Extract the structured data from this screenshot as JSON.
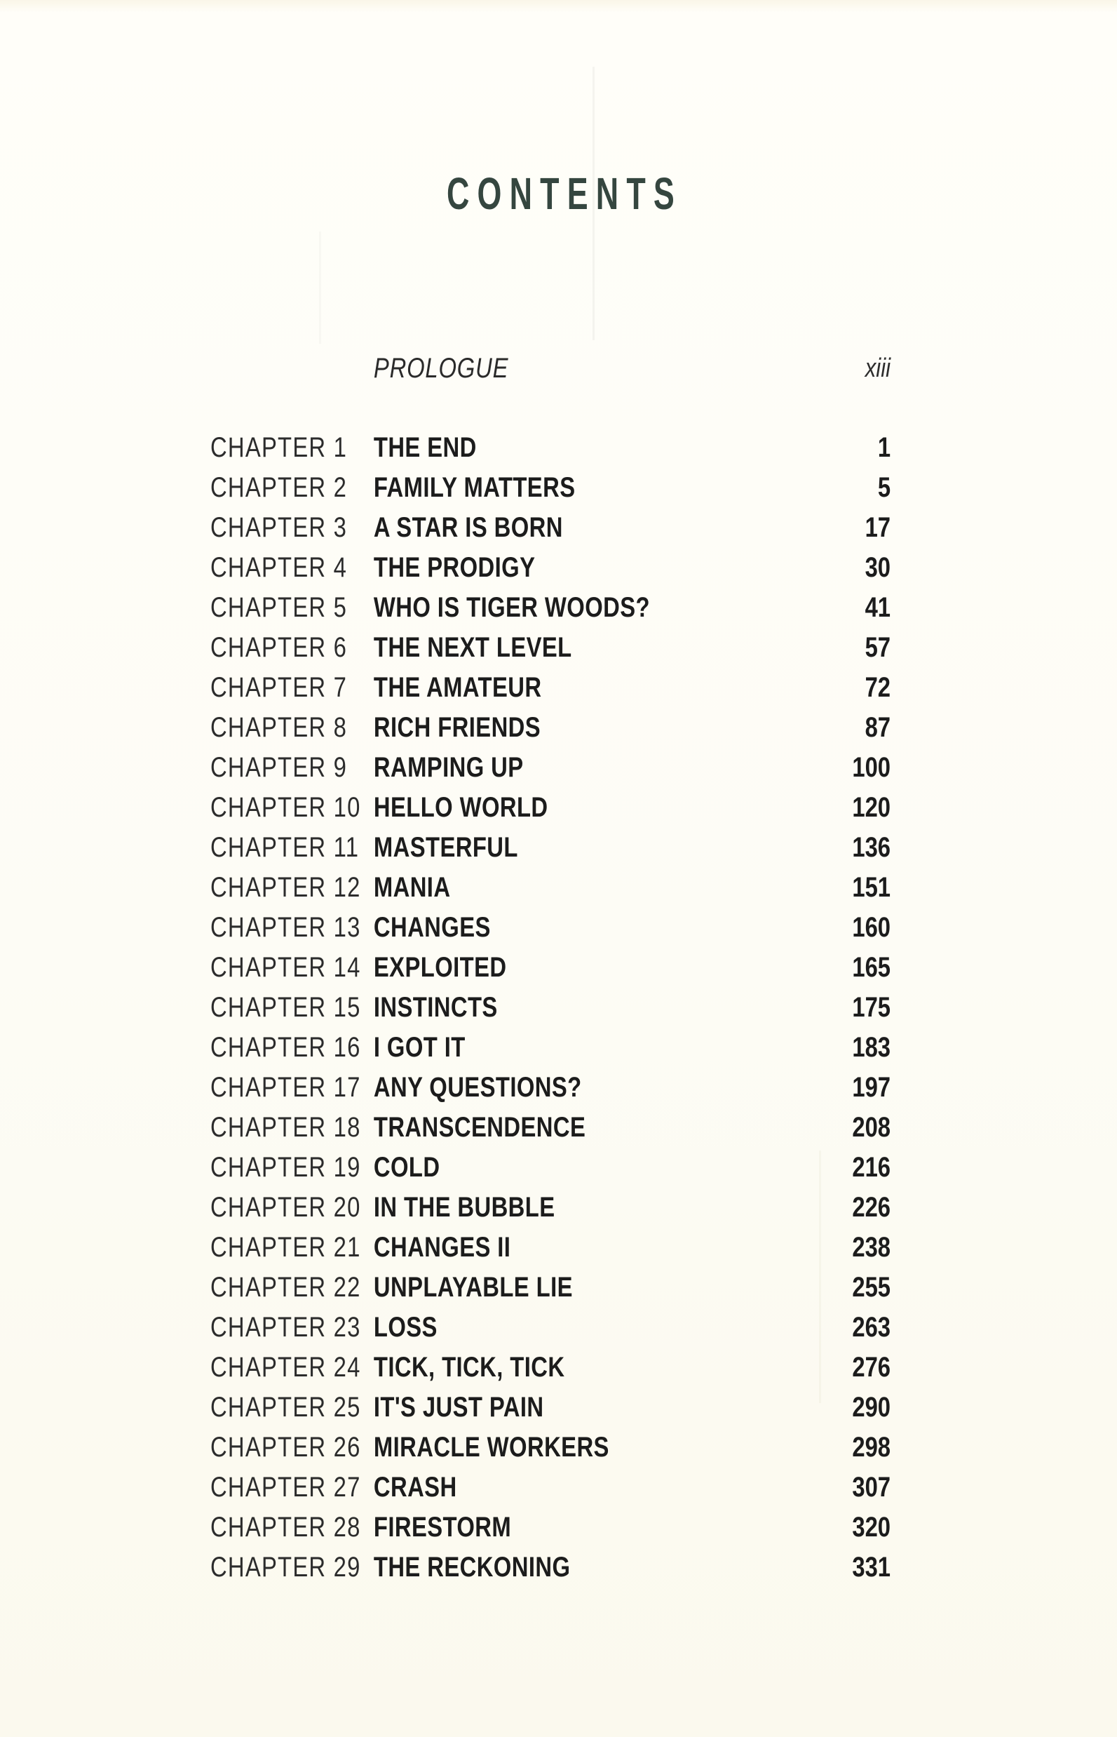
{
  "page": {
    "heading": "CONTENTS",
    "colors": {
      "heading": "#35463f",
      "body_text": "#1e1e1e",
      "paper": "#fdfcf5"
    }
  },
  "front_matter": {
    "label": "PROLOGUE",
    "page": "xiii"
  },
  "chapters": [
    {
      "label": "CHAPTER 1",
      "title": "THE END",
      "page": "1"
    },
    {
      "label": "CHAPTER 2",
      "title": "FAMILY MATTERS",
      "page": "5"
    },
    {
      "label": "CHAPTER 3",
      "title": "A STAR IS BORN",
      "page": "17"
    },
    {
      "label": "CHAPTER 4",
      "title": "THE PRODIGY",
      "page": "30"
    },
    {
      "label": "CHAPTER 5",
      "title": "WHO IS TIGER WOODS?",
      "page": "41"
    },
    {
      "label": "CHAPTER 6",
      "title": "THE NEXT LEVEL",
      "page": "57"
    },
    {
      "label": "CHAPTER 7",
      "title": "THE AMATEUR",
      "page": "72"
    },
    {
      "label": "CHAPTER 8",
      "title": "RICH FRIENDS",
      "page": "87"
    },
    {
      "label": "CHAPTER 9",
      "title": "RAMPING UP",
      "page": "100"
    },
    {
      "label": "CHAPTER 10",
      "title": "HELLO WORLD",
      "page": "120"
    },
    {
      "label": "CHAPTER 11",
      "title": "MASTERFUL",
      "page": "136"
    },
    {
      "label": "CHAPTER 12",
      "title": "MANIA",
      "page": "151"
    },
    {
      "label": "CHAPTER 13",
      "title": "CHANGES",
      "page": "160"
    },
    {
      "label": "CHAPTER 14",
      "title": "EXPLOITED",
      "page": "165"
    },
    {
      "label": "CHAPTER 15",
      "title": "INSTINCTS",
      "page": "175"
    },
    {
      "label": "CHAPTER 16",
      "title": "I GOT IT",
      "page": "183"
    },
    {
      "label": "CHAPTER 17",
      "title": "ANY QUESTIONS?",
      "page": "197"
    },
    {
      "label": "CHAPTER 18",
      "title": "TRANSCENDENCE",
      "page": "208"
    },
    {
      "label": "CHAPTER 19",
      "title": "COLD",
      "page": "216"
    },
    {
      "label": "CHAPTER 20",
      "title": "IN THE BUBBLE",
      "page": "226"
    },
    {
      "label": "CHAPTER 21",
      "title": "CHANGES II",
      "page": "238"
    },
    {
      "label": "CHAPTER 22",
      "title": "UNPLAYABLE LIE",
      "page": "255"
    },
    {
      "label": "CHAPTER 23",
      "title": "LOSS",
      "page": "263"
    },
    {
      "label": "CHAPTER 24",
      "title": "TICK, TICK, TICK",
      "page": "276"
    },
    {
      "label": "CHAPTER 25",
      "title": "IT'S JUST PAIN",
      "page": "290"
    },
    {
      "label": "CHAPTER 26",
      "title": "MIRACLE WORKERS",
      "page": "298"
    },
    {
      "label": "CHAPTER 27",
      "title": "CRASH",
      "page": "307"
    },
    {
      "label": "CHAPTER 28",
      "title": "FIRESTORM",
      "page": "320"
    },
    {
      "label": "CHAPTER 29",
      "title": "THE RECKONING",
      "page": "331"
    }
  ]
}
